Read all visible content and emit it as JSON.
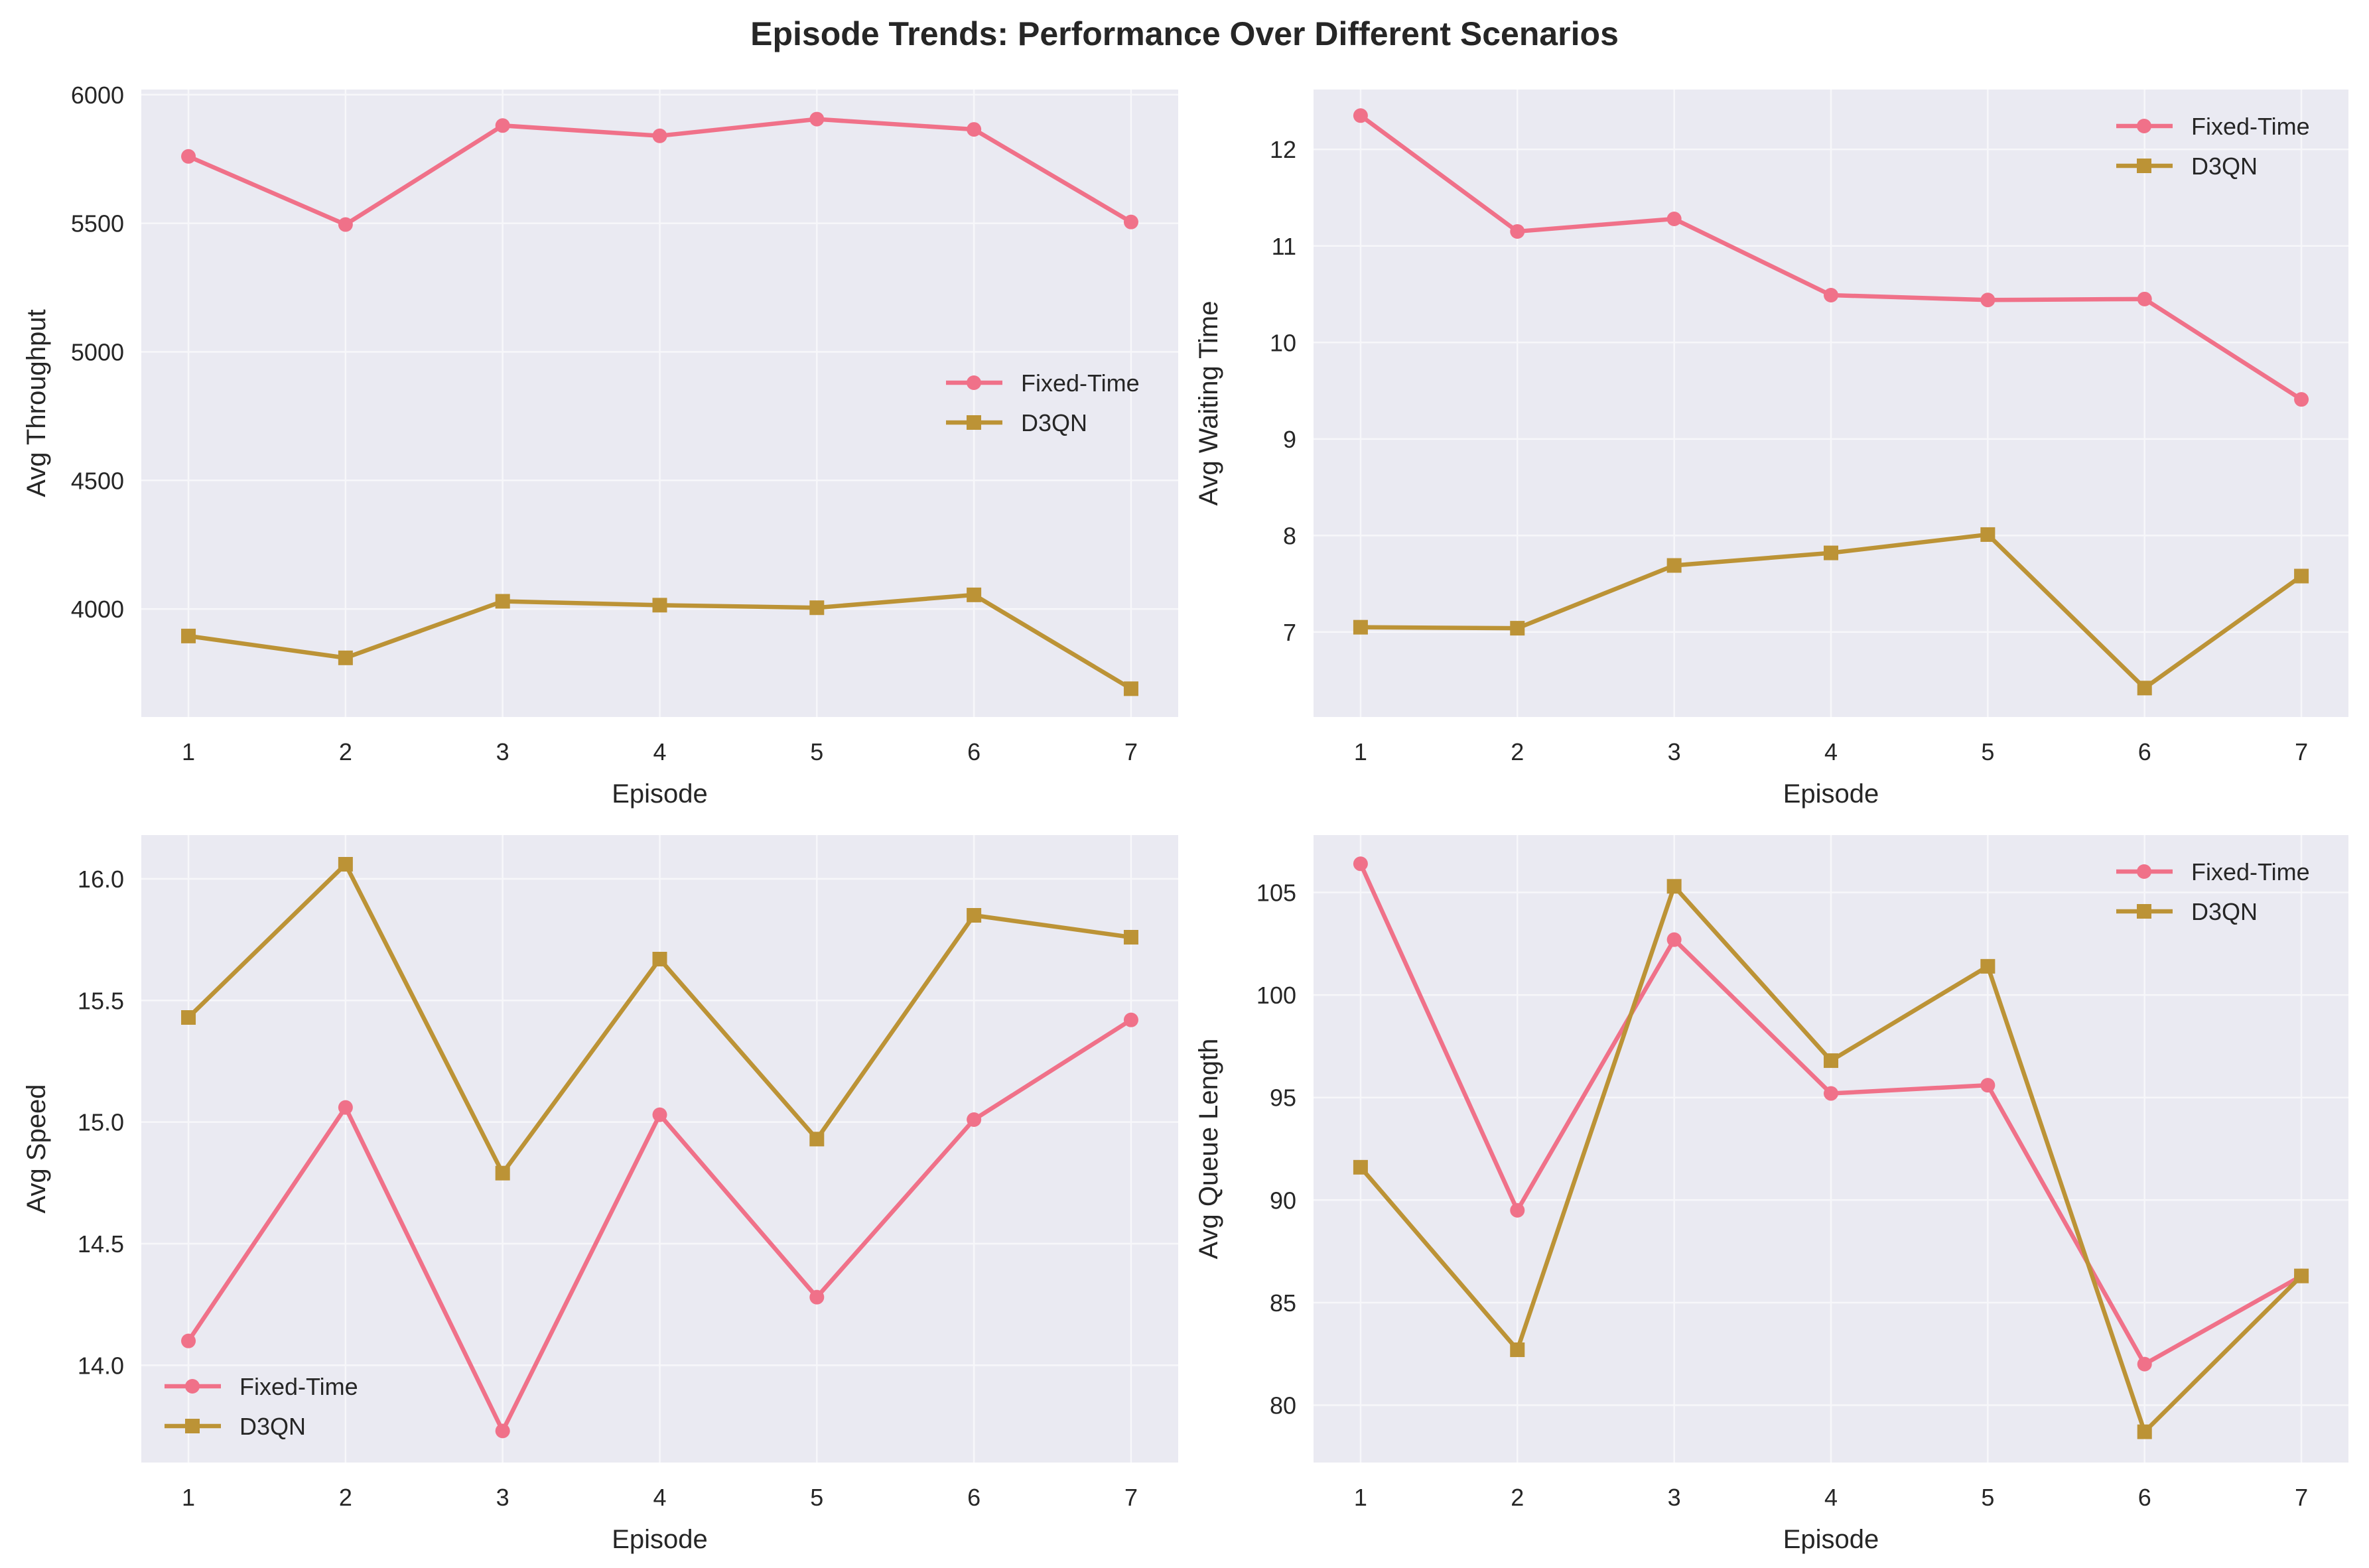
{
  "title": "Episode Trends: Performance Over Different Scenarios",
  "colors": {
    "fixed_time": "#f07189",
    "d3qn": "#bc9336",
    "panel_bg": "#eaeaf2",
    "grid": "#f7f7fa"
  },
  "chart_data": [
    {
      "type": "line",
      "xlabel": "Episode",
      "ylabel": "Avg Throughput",
      "x": [
        1,
        2,
        3,
        4,
        5,
        6,
        7
      ],
      "xlim": [
        0.7,
        7.3
      ],
      "ylim": [
        3580,
        6020
      ],
      "yticks": [
        4000,
        4500,
        5000,
        5500,
        6000
      ],
      "ytick_labels": [
        "4000",
        "4500",
        "5000",
        "5500",
        "6000"
      ],
      "grid": true,
      "legend": "center-right",
      "series": [
        {
          "name": "Fixed-Time",
          "marker": "circle",
          "values": [
            5760,
            5495,
            5880,
            5840,
            5905,
            5865,
            5505
          ]
        },
        {
          "name": "D3QN",
          "marker": "square",
          "values": [
            3895,
            3810,
            4030,
            4015,
            4005,
            4055,
            3690
          ]
        }
      ]
    },
    {
      "type": "line",
      "xlabel": "Episode",
      "ylabel": "Avg Waiting Time",
      "x": [
        1,
        2,
        3,
        4,
        5,
        6,
        7
      ],
      "xlim": [
        0.7,
        7.3
      ],
      "ylim": [
        6.12,
        12.62
      ],
      "yticks": [
        7,
        8,
        9,
        10,
        11,
        12
      ],
      "ytick_labels": [
        "7",
        "8",
        "9",
        "10",
        "11",
        "12"
      ],
      "grid": true,
      "legend": "top-right",
      "series": [
        {
          "name": "Fixed-Time",
          "marker": "circle",
          "values": [
            12.35,
            11.15,
            11.28,
            10.49,
            10.44,
            10.45,
            9.41
          ]
        },
        {
          "name": "D3QN",
          "marker": "square",
          "values": [
            7.05,
            7.04,
            7.69,
            7.82,
            8.01,
            6.42,
            7.58
          ]
        }
      ]
    },
    {
      "type": "line",
      "xlabel": "Episode",
      "ylabel": "Avg Speed",
      "x": [
        1,
        2,
        3,
        4,
        5,
        6,
        7
      ],
      "xlim": [
        0.7,
        7.3
      ],
      "ylim": [
        13.6,
        16.18
      ],
      "yticks": [
        14.0,
        14.5,
        15.0,
        15.5,
        16.0
      ],
      "ytick_labels": [
        "14.0",
        "14.5",
        "15.0",
        "15.5",
        "16.0"
      ],
      "grid": true,
      "legend": "bottom-left",
      "series": [
        {
          "name": "Fixed-Time",
          "marker": "circle",
          "values": [
            14.1,
            15.06,
            13.73,
            15.03,
            14.28,
            15.01,
            15.42
          ]
        },
        {
          "name": "D3QN",
          "marker": "square",
          "values": [
            15.43,
            16.06,
            14.79,
            15.67,
            14.93,
            15.85,
            15.76
          ]
        }
      ]
    },
    {
      "type": "line",
      "xlabel": "Episode",
      "ylabel": "Avg Queue Length",
      "x": [
        1,
        2,
        3,
        4,
        5,
        6,
        7
      ],
      "xlim": [
        0.7,
        7.3
      ],
      "ylim": [
        77.2,
        107.8
      ],
      "yticks": [
        80,
        85,
        90,
        95,
        100,
        105
      ],
      "ytick_labels": [
        "80",
        "85",
        "90",
        "95",
        "100",
        "105"
      ],
      "grid": true,
      "legend": "top-right",
      "series": [
        {
          "name": "Fixed-Time",
          "marker": "circle",
          "values": [
            106.4,
            89.5,
            102.7,
            95.2,
            95.6,
            82.0,
            86.3
          ]
        },
        {
          "name": "D3QN",
          "marker": "square",
          "values": [
            91.6,
            82.7,
            105.3,
            96.8,
            101.4,
            78.7,
            86.3
          ]
        }
      ]
    }
  ]
}
